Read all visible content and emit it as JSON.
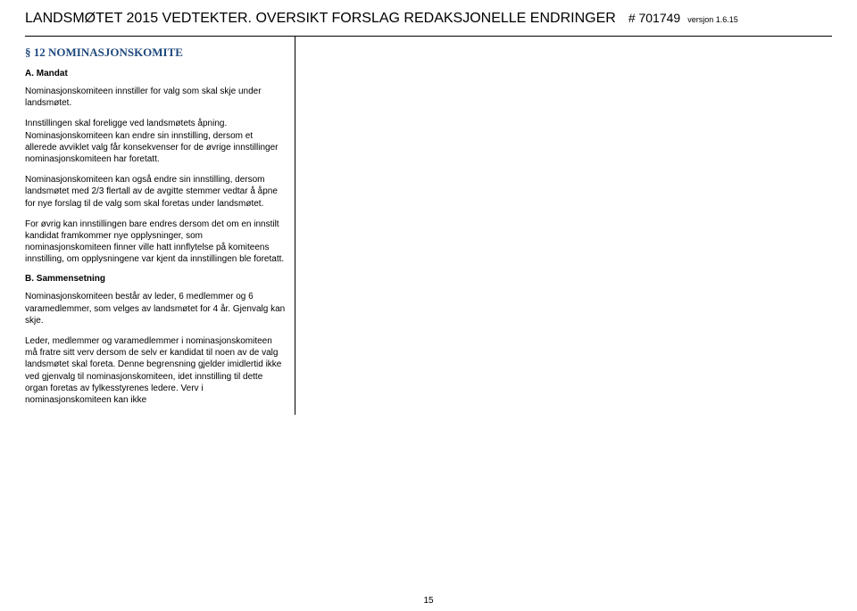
{
  "header": {
    "title": "LANDSMØTET 2015 VEDTEKTER. OVERSIKT FORSLAG REDAKSJONELLE ENDRINGER",
    "docid": "# 701749",
    "version": "versjon 1.6.15"
  },
  "section": {
    "heading": "§ 12 NOMINASJONSKOMITE",
    "sub_a": "A. Mandat",
    "p1": "Nominasjonskomiteen innstiller for valg som skal skje under landsmøtet.",
    "p2": "Innstillingen skal foreligge ved landsmøtets åpning. Nominasjonskomiteen kan endre sin innstilling, dersom et allerede avviklet valg får konsekvenser for de øvrige innstillinger nominasjonskomiteen har foretatt.",
    "p3": "Nominasjonskomiteen kan også endre sin innstilling, dersom landsmøtet med 2/3 flertall av de avgitte stemmer vedtar å åpne for nye forslag til de valg som skal foretas under landsmøtet.",
    "p4": "For øvrig kan innstillingen bare endres dersom det om en innstilt kandidat framkommer nye opplysninger, som nominasjonskomiteen finner ville hatt innflytelse på komiteens innstilling, om opplysningene var kjent da innstillingen ble foretatt.",
    "sub_b": "B. Sammensetning",
    "p5": "Nominasjonskomiteen består av leder, 6 medlemmer og 6 varamedlemmer, som velges av landsmøtet for 4 år. Gjenvalg kan skje.",
    "p6": "Leder, medlemmer og varamedlemmer i nominasjonskomiteen må fratre sitt verv dersom de selv er kandidat til noen av de valg landsmøtet skal foreta. Denne begrensning gjelder imidlertid ikke ved gjenvalg til nominasjonskomiteen, idet innstilling til dette organ foretas av fylkesstyrenes ledere. Verv i nominasjonskomiteen kan ikke"
  },
  "page_number": "15"
}
